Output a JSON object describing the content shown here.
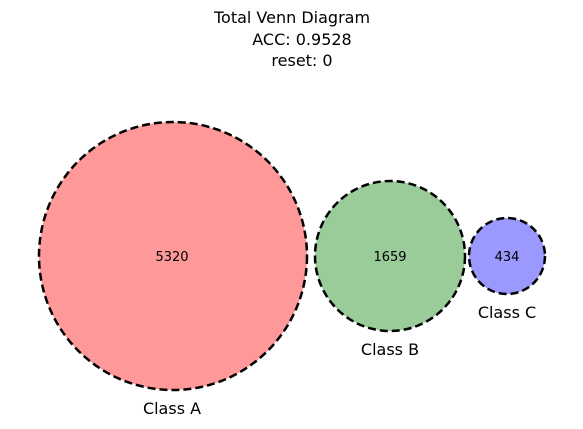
{
  "title": {
    "line1": "Total Venn Diagram",
    "line2": "ACC: 0.9528",
    "line3": "reset: 0"
  },
  "sets": [
    {
      "name": "Class A",
      "count": "5320",
      "color": "#ff9999"
    },
    {
      "name": "Class B",
      "count": "1659",
      "color": "#99cc99"
    },
    {
      "name": "Class C",
      "count": "434",
      "color": "#9999ff"
    }
  ]
}
